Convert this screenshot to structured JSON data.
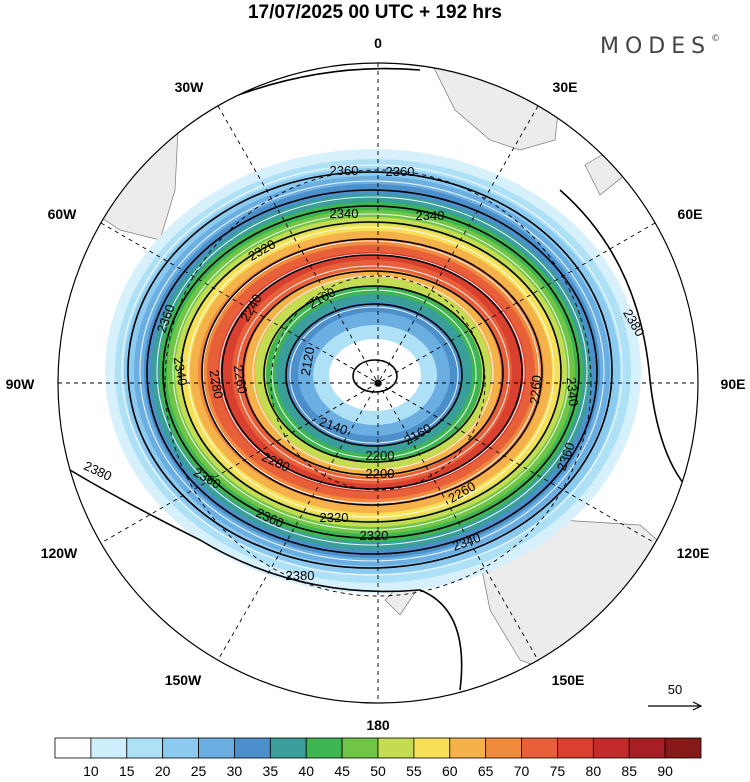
{
  "title": "17/07/2025  00 UTC  + 192 hrs",
  "brand": "MODES",
  "brand_mark": "©",
  "longitude_labels": [
    {
      "key": "0",
      "text": "0"
    },
    {
      "key": "30E",
      "text": "30E"
    },
    {
      "key": "60E",
      "text": "60E"
    },
    {
      "key": "90E",
      "text": "90E"
    },
    {
      "key": "120E",
      "text": "120E"
    },
    {
      "key": "150E",
      "text": "150E"
    },
    {
      "key": "180",
      "text": "180"
    },
    {
      "key": "150W",
      "text": "150W"
    },
    {
      "key": "120W",
      "text": "120W"
    },
    {
      "key": "90W",
      "text": "90W"
    },
    {
      "key": "60W",
      "text": "60W"
    },
    {
      "key": "30W",
      "text": "30W"
    }
  ],
  "contour_labels": [
    "2360",
    "2340",
    "2320",
    "2240",
    "2160",
    "2120",
    "2140",
    "2160",
    "2200",
    "2260",
    "2320",
    "2340",
    "2360",
    "2380",
    "2360",
    "2340",
    "2280",
    "2260",
    "2360",
    "2380",
    "2380",
    "2320",
    "2360",
    "2280",
    "2200",
    "2260",
    "2340",
    "2360",
    "2340"
  ],
  "vector_reference": "50",
  "colorbar": {
    "labels": [
      "10",
      "15",
      "20",
      "25",
      "30",
      "35",
      "40",
      "45",
      "50",
      "55",
      "60",
      "65",
      "70",
      "75",
      "80",
      "85",
      "90"
    ],
    "colors": [
      "#ffffff",
      "#cfeefb",
      "#aee0f6",
      "#8ccaf0",
      "#6aaee2",
      "#4b8fcb",
      "#3a9e9a",
      "#3fb551",
      "#71c546",
      "#c4dc52",
      "#f5e058",
      "#f5b24a",
      "#f08a3c",
      "#e8603a",
      "#d9402f",
      "#c32a2b",
      "#a81e25",
      "#861818"
    ]
  }
}
